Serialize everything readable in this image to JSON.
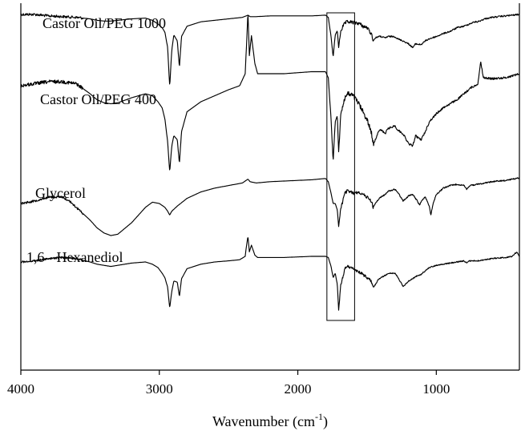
{
  "chart_data": {
    "type": "line",
    "title": "",
    "xlabel": "Wavenumber",
    "xlabel_unit": "(cm",
    "xlabel_unit_sup": "-1",
    "xlabel_unit_close": ")",
    "ylabel": "",
    "xlim": [
      4000,
      400
    ],
    "x_reversed": true,
    "x_ticks": [
      4000,
      3000,
      2000,
      1000
    ],
    "x_tick_labels": [
      "4000",
      "3000",
      "2000",
      "1000"
    ],
    "y_axis_shown": false,
    "grid": false,
    "highlight_box": {
      "x_from": 1790,
      "x_to": 1590,
      "spans": "all series"
    },
    "series": [
      {
        "name": "Castor Oil/PEG 1000",
        "baseline_rel": 0.05,
        "points": [
          [
            4000,
            0.0
          ],
          [
            3900,
            0.0
          ],
          [
            3800,
            0.02
          ],
          [
            3700,
            0.03
          ],
          [
            3600,
            0.04
          ],
          [
            3500,
            0.06
          ],
          [
            3450,
            0.08
          ],
          [
            3400,
            0.09
          ],
          [
            3350,
            0.09
          ],
          [
            3300,
            0.08
          ],
          [
            3200,
            0.06
          ],
          [
            3100,
            0.05
          ],
          [
            3050,
            0.08
          ],
          [
            3010,
            0.13
          ],
          [
            2980,
            0.18
          ],
          [
            2960,
            0.24
          ],
          [
            2940,
            0.45
          ],
          [
            2925,
            0.98
          ],
          [
            2910,
            0.48
          ],
          [
            2895,
            0.28
          ],
          [
            2870,
            0.36
          ],
          [
            2855,
            0.72
          ],
          [
            2840,
            0.3
          ],
          [
            2800,
            0.16
          ],
          [
            2700,
            0.1
          ],
          [
            2600,
            0.08
          ],
          [
            2500,
            0.06
          ],
          [
            2400,
            0.04
          ],
          [
            2360,
            0.01
          ],
          [
            2345,
            0.03
          ],
          [
            2300,
            0.03
          ],
          [
            2200,
            0.02
          ],
          [
            2100,
            0.02
          ],
          [
            2000,
            0.02
          ],
          [
            1900,
            0.02
          ],
          [
            1800,
            0.01
          ],
          [
            1780,
            0.04
          ],
          [
            1760,
            0.3
          ],
          [
            1745,
            0.58
          ],
          [
            1730,
            0.28
          ],
          [
            1715,
            0.22
          ],
          [
            1705,
            0.45
          ],
          [
            1690,
            0.22
          ],
          [
            1660,
            0.12
          ],
          [
            1640,
            0.1
          ],
          [
            1600,
            0.11
          ],
          [
            1560,
            0.12
          ],
          [
            1530,
            0.16
          ],
          [
            1500,
            0.18
          ],
          [
            1470,
            0.26
          ],
          [
            1455,
            0.35
          ],
          [
            1440,
            0.32
          ],
          [
            1420,
            0.3
          ],
          [
            1400,
            0.3
          ],
          [
            1370,
            0.32
          ],
          [
            1350,
            0.3
          ],
          [
            1300,
            0.3
          ],
          [
            1280,
            0.33
          ],
          [
            1240,
            0.36
          ],
          [
            1200,
            0.4
          ],
          [
            1170,
            0.45
          ],
          [
            1150,
            0.4
          ],
          [
            1110,
            0.41
          ],
          [
            1080,
            0.36
          ],
          [
            1050,
            0.33
          ],
          [
            1000,
            0.3
          ],
          [
            950,
            0.26
          ],
          [
            900,
            0.23
          ],
          [
            850,
            0.18
          ],
          [
            800,
            0.16
          ],
          [
            750,
            0.12
          ],
          [
            720,
            0.1
          ],
          [
            700,
            0.1
          ],
          [
            650,
            0.06
          ],
          [
            600,
            0.04
          ],
          [
            500,
            0.02
          ],
          [
            400,
            0.0
          ]
        ]
      },
      {
        "name": "Castor Oil/PEG 400",
        "baseline_rel": 0.2,
        "points": [
          [
            4000,
            0.12
          ],
          [
            3900,
            0.1
          ],
          [
            3800,
            0.08
          ],
          [
            3700,
            0.08
          ],
          [
            3600,
            0.1
          ],
          [
            3500,
            0.2
          ],
          [
            3450,
            0.26
          ],
          [
            3400,
            0.29
          ],
          [
            3350,
            0.3
          ],
          [
            3300,
            0.29
          ],
          [
            3200,
            0.24
          ],
          [
            3100,
            0.2
          ],
          [
            3050,
            0.22
          ],
          [
            3010,
            0.28
          ],
          [
            2980,
            0.34
          ],
          [
            2960,
            0.45
          ],
          [
            2940,
            0.68
          ],
          [
            2925,
            0.98
          ],
          [
            2910,
            0.72
          ],
          [
            2895,
            0.62
          ],
          [
            2870,
            0.66
          ],
          [
            2855,
            0.9
          ],
          [
            2840,
            0.58
          ],
          [
            2800,
            0.38
          ],
          [
            2700,
            0.28
          ],
          [
            2600,
            0.22
          ],
          [
            2500,
            0.16
          ],
          [
            2420,
            0.12
          ],
          [
            2380,
            0.0
          ],
          [
            2370,
            -0.3
          ],
          [
            2360,
            -0.62
          ],
          [
            2350,
            -0.18
          ],
          [
            2335,
            -0.38
          ],
          [
            2310,
            -0.1
          ],
          [
            2290,
            0.0
          ],
          [
            2200,
            0.0
          ],
          [
            2100,
            0.0
          ],
          [
            2000,
            -0.01
          ],
          [
            1900,
            -0.02
          ],
          [
            1800,
            -0.02
          ],
          [
            1780,
            0.04
          ],
          [
            1760,
            0.45
          ],
          [
            1745,
            0.88
          ],
          [
            1730,
            0.48
          ],
          [
            1715,
            0.42
          ],
          [
            1705,
            0.78
          ],
          [
            1690,
            0.4
          ],
          [
            1660,
            0.24
          ],
          [
            1640,
            0.2
          ],
          [
            1600,
            0.22
          ],
          [
            1560,
            0.3
          ],
          [
            1530,
            0.38
          ],
          [
            1500,
            0.46
          ],
          [
            1470,
            0.58
          ],
          [
            1455,
            0.7
          ],
          [
            1440,
            0.66
          ],
          [
            1420,
            0.58
          ],
          [
            1400,
            0.56
          ],
          [
            1370,
            0.6
          ],
          [
            1350,
            0.55
          ],
          [
            1300,
            0.52
          ],
          [
            1280,
            0.56
          ],
          [
            1240,
            0.6
          ],
          [
            1200,
            0.7
          ],
          [
            1170,
            0.72
          ],
          [
            1150,
            0.62
          ],
          [
            1110,
            0.66
          ],
          [
            1080,
            0.58
          ],
          [
            1050,
            0.48
          ],
          [
            1000,
            0.4
          ],
          [
            950,
            0.34
          ],
          [
            900,
            0.3
          ],
          [
            850,
            0.26
          ],
          [
            800,
            0.2
          ],
          [
            750,
            0.14
          ],
          [
            720,
            0.12
          ],
          [
            700,
            0.1
          ],
          [
            680,
            -0.12
          ],
          [
            660,
            0.04
          ],
          [
            600,
            0.05
          ],
          [
            500,
            0.04
          ],
          [
            400,
            0.0
          ]
        ]
      },
      {
        "name": "Glycerol",
        "baseline_rel": 0.42,
        "points": [
          [
            4000,
            0.4
          ],
          [
            3900,
            0.36
          ],
          [
            3800,
            0.3
          ],
          [
            3700,
            0.3
          ],
          [
            3650,
            0.36
          ],
          [
            3600,
            0.46
          ],
          [
            3500,
            0.66
          ],
          [
            3450,
            0.78
          ],
          [
            3400,
            0.86
          ],
          [
            3350,
            0.9
          ],
          [
            3300,
            0.88
          ],
          [
            3200,
            0.7
          ],
          [
            3100,
            0.46
          ],
          [
            3050,
            0.38
          ],
          [
            3000,
            0.4
          ],
          [
            2960,
            0.46
          ],
          [
            2940,
            0.52
          ],
          [
            2925,
            0.58
          ],
          [
            2910,
            0.52
          ],
          [
            2890,
            0.48
          ],
          [
            2870,
            0.44
          ],
          [
            2800,
            0.32
          ],
          [
            2700,
            0.22
          ],
          [
            2600,
            0.16
          ],
          [
            2500,
            0.12
          ],
          [
            2400,
            0.08
          ],
          [
            2360,
            0.02
          ],
          [
            2345,
            0.06
          ],
          [
            2300,
            0.08
          ],
          [
            2200,
            0.06
          ],
          [
            2100,
            0.05
          ],
          [
            2000,
            0.04
          ],
          [
            1900,
            0.03
          ],
          [
            1800,
            0.01
          ],
          [
            1780,
            0.06
          ],
          [
            1760,
            0.24
          ],
          [
            1745,
            0.4
          ],
          [
            1730,
            0.4
          ],
          [
            1715,
            0.5
          ],
          [
            1705,
            0.76
          ],
          [
            1690,
            0.48
          ],
          [
            1660,
            0.24
          ],
          [
            1640,
            0.2
          ],
          [
            1600,
            0.24
          ],
          [
            1560,
            0.22
          ],
          [
            1530,
            0.26
          ],
          [
            1500,
            0.3
          ],
          [
            1470,
            0.36
          ],
          [
            1455,
            0.46
          ],
          [
            1440,
            0.4
          ],
          [
            1420,
            0.34
          ],
          [
            1400,
            0.3
          ],
          [
            1370,
            0.26
          ],
          [
            1340,
            0.2
          ],
          [
            1300,
            0.18
          ],
          [
            1280,
            0.22
          ],
          [
            1240,
            0.36
          ],
          [
            1200,
            0.28
          ],
          [
            1170,
            0.26
          ],
          [
            1150,
            0.32
          ],
          [
            1120,
            0.42
          ],
          [
            1100,
            0.34
          ],
          [
            1080,
            0.3
          ],
          [
            1050,
            0.44
          ],
          [
            1040,
            0.58
          ],
          [
            1020,
            0.38
          ],
          [
            1000,
            0.26
          ],
          [
            950,
            0.16
          ],
          [
            900,
            0.12
          ],
          [
            850,
            0.1
          ],
          [
            800,
            0.12
          ],
          [
            780,
            0.18
          ],
          [
            760,
            0.12
          ],
          [
            700,
            0.1
          ],
          [
            600,
            0.06
          ],
          [
            500,
            0.04
          ],
          [
            400,
            0.0
          ]
        ]
      },
      {
        "name": "1,6 - Hexanediol",
        "baseline_rel": 0.62,
        "points": [
          [
            4000,
            0.1
          ],
          [
            3900,
            0.08
          ],
          [
            3800,
            0.04
          ],
          [
            3700,
            0.02
          ],
          [
            3600,
            0.04
          ],
          [
            3500,
            0.1
          ],
          [
            3450,
            0.14
          ],
          [
            3400,
            0.16
          ],
          [
            3350,
            0.18
          ],
          [
            3300,
            0.16
          ],
          [
            3200,
            0.12
          ],
          [
            3100,
            0.1
          ],
          [
            3050,
            0.14
          ],
          [
            3010,
            0.2
          ],
          [
            2980,
            0.3
          ],
          [
            2960,
            0.38
          ],
          [
            2940,
            0.55
          ],
          [
            2925,
            0.92
          ],
          [
            2910,
            0.62
          ],
          [
            2895,
            0.44
          ],
          [
            2870,
            0.46
          ],
          [
            2855,
            0.72
          ],
          [
            2840,
            0.4
          ],
          [
            2800,
            0.22
          ],
          [
            2700,
            0.14
          ],
          [
            2600,
            0.1
          ],
          [
            2500,
            0.08
          ],
          [
            2420,
            0.06
          ],
          [
            2380,
            0.0
          ],
          [
            2370,
            -0.2
          ],
          [
            2360,
            -0.36
          ],
          [
            2350,
            -0.08
          ],
          [
            2335,
            -0.2
          ],
          [
            2310,
            -0.02
          ],
          [
            2290,
            0.02
          ],
          [
            2200,
            0.02
          ],
          [
            2100,
            0.02
          ],
          [
            2000,
            0.01
          ],
          [
            1900,
            0.0
          ],
          [
            1800,
            0.0
          ],
          [
            1780,
            0.02
          ],
          [
            1760,
            0.18
          ],
          [
            1745,
            0.38
          ],
          [
            1730,
            0.3
          ],
          [
            1715,
            0.5
          ],
          [
            1705,
            0.96
          ],
          [
            1690,
            0.52
          ],
          [
            1660,
            0.22
          ],
          [
            1640,
            0.18
          ],
          [
            1600,
            0.22
          ],
          [
            1560,
            0.28
          ],
          [
            1530,
            0.32
          ],
          [
            1500,
            0.38
          ],
          [
            1470,
            0.44
          ],
          [
            1455,
            0.56
          ],
          [
            1440,
            0.5
          ],
          [
            1420,
            0.42
          ],
          [
            1400,
            0.38
          ],
          [
            1370,
            0.34
          ],
          [
            1340,
            0.3
          ],
          [
            1300,
            0.3
          ],
          [
            1280,
            0.36
          ],
          [
            1240,
            0.54
          ],
          [
            1200,
            0.44
          ],
          [
            1170,
            0.4
          ],
          [
            1150,
            0.36
          ],
          [
            1110,
            0.32
          ],
          [
            1080,
            0.26
          ],
          [
            1050,
            0.2
          ],
          [
            1000,
            0.16
          ],
          [
            950,
            0.14
          ],
          [
            900,
            0.12
          ],
          [
            850,
            0.1
          ],
          [
            800,
            0.08
          ],
          [
            780,
            0.12
          ],
          [
            760,
            0.08
          ],
          [
            700,
            0.08
          ],
          [
            600,
            0.04
          ],
          [
            500,
            0.02
          ],
          [
            450,
            0.0
          ],
          [
            420,
            -0.08
          ],
          [
            400,
            0.0
          ]
        ]
      }
    ]
  }
}
